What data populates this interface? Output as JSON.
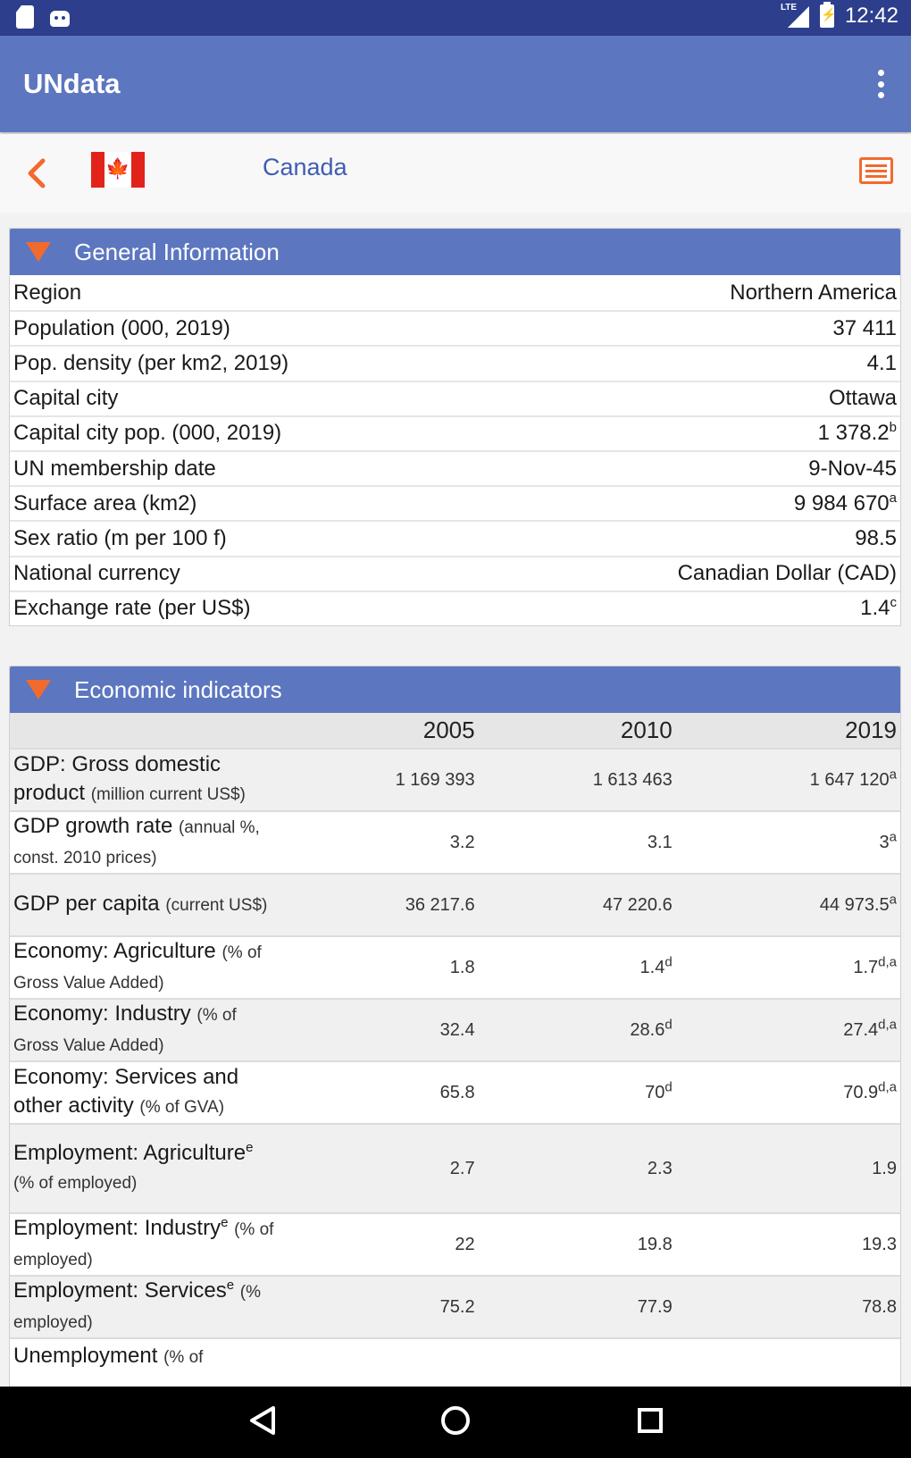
{
  "status_bar": {
    "time": "12:42",
    "network": "LTE"
  },
  "app_bar": {
    "title": "UNdata"
  },
  "country": {
    "name": "Canada"
  },
  "general": {
    "title": "General Information",
    "rows": [
      {
        "label": "Region",
        "value": "Northern America",
        "note": ""
      },
      {
        "label": "Population (000, 2019)",
        "value": "37 411",
        "note": ""
      },
      {
        "label": "Pop. density (per km2, 2019)",
        "value": "4.1",
        "note": ""
      },
      {
        "label": "Capital city",
        "value": "Ottawa",
        "note": ""
      },
      {
        "label": "Capital city pop. (000, 2019)",
        "value": "1 378.2",
        "note": "b"
      },
      {
        "label": "UN membership date",
        "value": "9-Nov-45",
        "note": ""
      },
      {
        "label": "Surface area (km2)",
        "value": "9 984 670",
        "note": "a"
      },
      {
        "label": "Sex ratio (m per 100 f)",
        "value": "98.5",
        "note": ""
      },
      {
        "label": "National currency",
        "value": "Canadian Dollar (CAD)",
        "note": ""
      },
      {
        "label": "Exchange rate (per US$)",
        "value": "1.4",
        "note": "c"
      }
    ]
  },
  "economic": {
    "title": "Economic indicators",
    "years": [
      "2005",
      "2010",
      "2019"
    ],
    "rows": [
      {
        "label": "GDP: Gross domestic product",
        "label_note": "",
        "unit": "(million current US$)",
        "v2005": "1 169 393",
        "n2005": "",
        "v2010": "1 613 463",
        "n2010": "",
        "v2019": "1 647 120",
        "n2019": "a"
      },
      {
        "label": "GDP growth rate",
        "label_note": "",
        "unit": "(annual %, const. 2010 prices)",
        "v2005": "3.2",
        "n2005": "",
        "v2010": "3.1",
        "n2010": "",
        "v2019": "3",
        "n2019": "a"
      },
      {
        "label": "GDP per capita",
        "label_note": "",
        "unit": "(current US$)",
        "v2005": "36 217.6",
        "n2005": "",
        "v2010": "47 220.6",
        "n2010": "",
        "v2019": "44 973.5",
        "n2019": "a"
      },
      {
        "label": "Economy: Agriculture",
        "label_note": "",
        "unit": "(% of Gross Value Added)",
        "v2005": "1.8",
        "n2005": "",
        "v2010": "1.4",
        "n2010": "d",
        "v2019": "1.7",
        "n2019": "d,a"
      },
      {
        "label": "Economy: Industry",
        "label_note": "",
        "unit": "(% of Gross Value Added)",
        "v2005": "32.4",
        "n2005": "",
        "v2010": "28.6",
        "n2010": "d",
        "v2019": "27.4",
        "n2019": "d,a"
      },
      {
        "label": "Economy: Services and other activity",
        "label_note": "",
        "unit": "(% of GVA)",
        "v2005": "65.8",
        "n2005": "",
        "v2010": "70",
        "n2010": "d",
        "v2019": "70.9",
        "n2019": "d,a"
      },
      {
        "label": "Employment: Agriculture",
        "label_note": "e",
        "unit": "(% of employed)",
        "v2005": "2.7",
        "n2005": "",
        "v2010": "2.3",
        "n2010": "",
        "v2019": "1.9",
        "n2019": ""
      },
      {
        "label": "Employment: Industry",
        "label_note": "e",
        "unit": "(% of employed)",
        "v2005": "22",
        "n2005": "",
        "v2010": "19.8",
        "n2010": "",
        "v2019": "19.3",
        "n2019": ""
      },
      {
        "label": "Employment: Services",
        "label_note": "e",
        "unit": "(% employed)",
        "v2005": "75.2",
        "n2005": "",
        "v2010": "77.9",
        "n2010": "",
        "v2019": "78.8",
        "n2019": ""
      },
      {
        "label": "Unemployment",
        "label_note": "",
        "unit": "(% of",
        "v2005": "",
        "n2005": "",
        "v2010": "",
        "n2010": "",
        "v2019": "",
        "n2019": ""
      }
    ]
  },
  "colors": {
    "status_bar": "#2c3e8c",
    "app_bar": "#5c76c0",
    "accent": "#f26a2e",
    "country_text": "#3f5cb5"
  }
}
